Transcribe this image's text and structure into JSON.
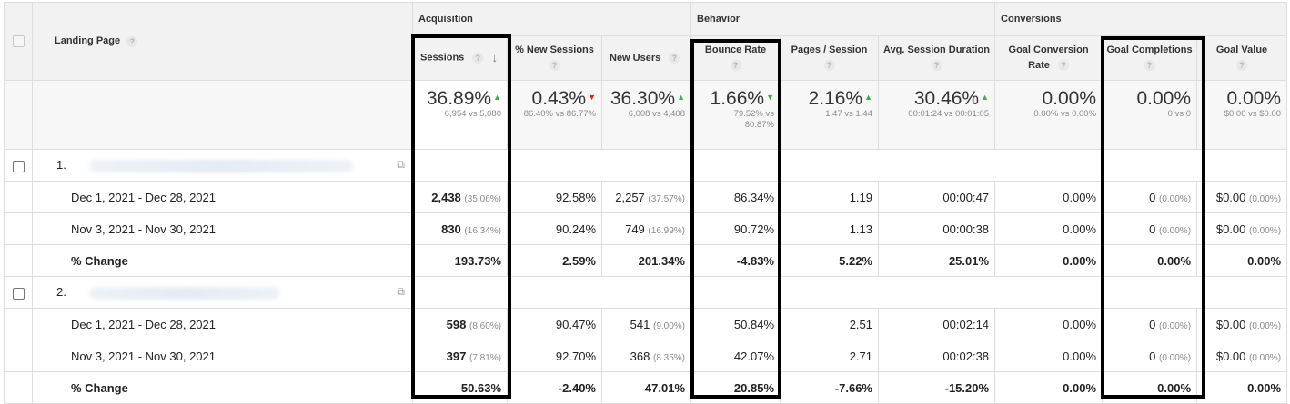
{
  "groups": {
    "acquisition": "Acquisition",
    "behavior": "Behavior",
    "conversions": "Conversions"
  },
  "columns": {
    "landing_page": "Landing Page",
    "sessions": "Sessions",
    "new_sessions_line1": "% New Sessions",
    "new_users": "New Users",
    "bounce_rate": "Bounce Rate",
    "pages_session": "Pages / Session",
    "avg_session_duration": "Avg. Session Duration",
    "goal_conversion_line1": "Goal Conversion",
    "goal_conversion_line2": "Rate",
    "goal_completions": "Goal Completions",
    "goal_value": "Goal Value"
  },
  "icons": {
    "help": "?",
    "sort": "↓",
    "up": "▲",
    "down": "▼",
    "open": "⧉"
  },
  "summary": {
    "sessions": {
      "big": "36.89%",
      "small": "6,954 vs 5,080",
      "trend": "up"
    },
    "new_sessions": {
      "big": "0.43%",
      "small": "86.40% vs 86.77%",
      "trend": "down"
    },
    "new_users": {
      "big": "36.30%",
      "small": "6,008 vs 4,408",
      "trend": "up"
    },
    "bounce_rate": {
      "big": "1.66%",
      "small1": "79.52% vs",
      "small2": "80.87%",
      "trend": "down-green"
    },
    "pages_session": {
      "big": "2.16%",
      "small": "1.47 vs 1.44",
      "trend": "up"
    },
    "avg_session_duration": {
      "big": "30.46%",
      "small": "00:01:24 vs 00:01:05",
      "trend": "up"
    },
    "goal_conversion": {
      "big": "0.00%",
      "small": "0.00% vs 0.00%"
    },
    "goal_completions": {
      "big": "0.00%",
      "small": "0 vs 0"
    },
    "goal_value": {
      "big": "0.00%",
      "small": "$0.00 vs $0.00"
    }
  },
  "pages": [
    {
      "index": "1.",
      "rows": [
        {
          "label": "Dec 1, 2021 - Dec 28, 2021",
          "sessions": "2,438",
          "sessions_pct": "(35.06%)",
          "new_sessions": "92.58%",
          "new_users": "2,257",
          "new_users_pct": "(37.57%)",
          "bounce_rate": "86.34%",
          "pages_session": "1.19",
          "avg_duration": "00:00:47",
          "goal_conv": "0.00%",
          "goal_comp": "0",
          "goal_comp_pct": "(0.00%)",
          "goal_value": "$0.00",
          "goal_value_pct": "(0.00%)"
        },
        {
          "label": "Nov 3, 2021 - Nov 30, 2021",
          "sessions": "830",
          "sessions_pct": "(16.34%)",
          "new_sessions": "90.24%",
          "new_users": "749",
          "new_users_pct": "(16.99%)",
          "bounce_rate": "90.72%",
          "pages_session": "1.13",
          "avg_duration": "00:00:38",
          "goal_conv": "0.00%",
          "goal_comp": "0",
          "goal_comp_pct": "(0.00%)",
          "goal_value": "$0.00",
          "goal_value_pct": "(0.00%)"
        },
        {
          "label": "% Change",
          "sessions": "193.73%",
          "new_sessions": "2.59%",
          "new_users": "201.34%",
          "bounce_rate": "-4.83%",
          "pages_session": "5.22%",
          "avg_duration": "25.01%",
          "goal_conv": "0.00%",
          "goal_comp": "0.00%",
          "goal_value": "0.00%"
        }
      ]
    },
    {
      "index": "2.",
      "rows": [
        {
          "label": "Dec 1, 2021 - Dec 28, 2021",
          "sessions": "598",
          "sessions_pct": "(8.60%)",
          "new_sessions": "90.47%",
          "new_users": "541",
          "new_users_pct": "(9.00%)",
          "bounce_rate": "50.84%",
          "pages_session": "2.51",
          "avg_duration": "00:02:14",
          "goal_conv": "0.00%",
          "goal_comp": "0",
          "goal_comp_pct": "(0.00%)",
          "goal_value": "$0.00",
          "goal_value_pct": "(0.00%)"
        },
        {
          "label": "Nov 3, 2021 - Nov 30, 2021",
          "sessions": "397",
          "sessions_pct": "(7.81%)",
          "new_sessions": "92.70%",
          "new_users": "368",
          "new_users_pct": "(8.35%)",
          "bounce_rate": "42.07%",
          "pages_session": "2.71",
          "avg_duration": "00:02:38",
          "goal_conv": "0.00%",
          "goal_comp": "0",
          "goal_comp_pct": "(0.00%)",
          "goal_value": "$0.00",
          "goal_value_pct": "(0.00%)"
        },
        {
          "label": "% Change",
          "sessions": "50.63%",
          "new_sessions": "-2.40%",
          "new_users": "47.01%",
          "bounce_rate": "20.85%",
          "pages_session": "-7.66%",
          "avg_duration": "-15.20%",
          "goal_conv": "0.00%",
          "goal_comp": "0.00%",
          "goal_value": "0.00%"
        }
      ]
    }
  ],
  "colors": {
    "up": "#3fae49",
    "down": "#e2231a",
    "highlight": "#000000",
    "header_bg": "#f2f2f2"
  }
}
